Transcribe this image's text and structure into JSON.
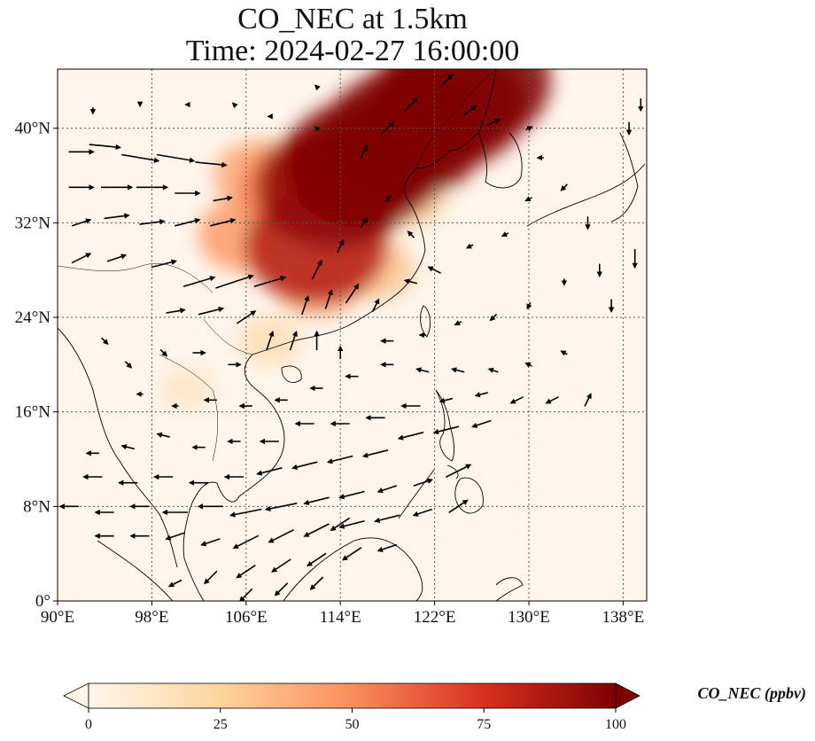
{
  "title": {
    "line1": "CO_NEC at 1.5km",
    "line2": "Time: 2024-02-27 16:00:00"
  },
  "map": {
    "lon_range": [
      90,
      140
    ],
    "lat_range": [
      0,
      45
    ],
    "lon_ticks": [
      {
        "value": 90,
        "label": "90°E"
      },
      {
        "value": 98,
        "label": "98°E"
      },
      {
        "value": 106,
        "label": "106°E"
      },
      {
        "value": 114,
        "label": "114°E"
      },
      {
        "value": 122,
        "label": "122°E"
      },
      {
        "value": 130,
        "label": "130°E"
      },
      {
        "value": 138,
        "label": "138°E"
      }
    ],
    "lat_ticks": [
      {
        "value": 0,
        "label": "0°"
      },
      {
        "value": 8,
        "label": "8°N"
      },
      {
        "value": 16,
        "label": "16°N"
      },
      {
        "value": 24,
        "label": "24°N"
      },
      {
        "value": 32,
        "label": "32°N"
      },
      {
        "value": 40,
        "label": "40°N"
      }
    ],
    "gridlines": "dotted",
    "background_color": "#fff5eb"
  },
  "colorbar": {
    "label": "CO_NEC (ppbv)",
    "range": [
      0,
      100
    ],
    "ticks": [
      {
        "value": 0,
        "label": "0"
      },
      {
        "value": 25,
        "label": "25"
      },
      {
        "value": 50,
        "label": "50"
      },
      {
        "value": 75,
        "label": "75"
      },
      {
        "value": 100,
        "label": "100"
      }
    ],
    "colormap": "OrRd",
    "colors": [
      "#fff5eb",
      "#fdd49e",
      "#fc8d59",
      "#d7301f",
      "#7f0000"
    ],
    "extend": "both"
  },
  "plumes": [
    {
      "lon": 119.5,
      "lat": 39.5,
      "value": 100
    },
    {
      "lon": 116,
      "lat": 37,
      "value": 100
    },
    {
      "lon": 113.5,
      "lat": 35,
      "value": 95
    },
    {
      "lon": 123,
      "lat": 42,
      "value": 100
    },
    {
      "lon": 125,
      "lat": 44,
      "value": 100
    },
    {
      "lon": 112,
      "lat": 30,
      "value": 85
    },
    {
      "lon": 110,
      "lat": 35,
      "value": 55
    },
    {
      "lon": 106,
      "lat": 31,
      "value": 45
    },
    {
      "lon": 107,
      "lat": 36,
      "value": 40
    },
    {
      "lon": 112,
      "lat": 27,
      "value": 40
    },
    {
      "lon": 117,
      "lat": 28,
      "value": 30
    },
    {
      "lon": 120,
      "lat": 34,
      "value": 25
    },
    {
      "lon": 108,
      "lat": 22,
      "value": 18
    },
    {
      "lon": 101,
      "lat": 18,
      "value": 12
    }
  ],
  "wind_vectors": [
    {
      "lon": 92,
      "lat": 38,
      "u": 4,
      "v": 0
    },
    {
      "lon": 94,
      "lat": 38.5,
      "u": 5,
      "v": -0.5
    },
    {
      "lon": 97,
      "lat": 37.5,
      "u": 6,
      "v": -1
    },
    {
      "lon": 100,
      "lat": 37.5,
      "u": 6,
      "v": -1
    },
    {
      "lon": 103,
      "lat": 37,
      "u": 5,
      "v": -0.5
    },
    {
      "lon": 92,
      "lat": 35,
      "u": 4,
      "v": 0
    },
    {
      "lon": 95,
      "lat": 35,
      "u": 5,
      "v": 0
    },
    {
      "lon": 98,
      "lat": 35,
      "u": 5,
      "v": 0
    },
    {
      "lon": 101,
      "lat": 34.5,
      "u": 4,
      "v": 0
    },
    {
      "lon": 104,
      "lat": 34,
      "u": 3,
      "v": 0.5
    },
    {
      "lon": 92,
      "lat": 32,
      "u": 3,
      "v": 1
    },
    {
      "lon": 95,
      "lat": 32.5,
      "u": 4,
      "v": 0.5
    },
    {
      "lon": 98,
      "lat": 32,
      "u": 4,
      "v": 0.5
    },
    {
      "lon": 101,
      "lat": 32,
      "u": 4,
      "v": 1
    },
    {
      "lon": 104,
      "lat": 32,
      "u": 4,
      "v": 1
    },
    {
      "lon": 92,
      "lat": 29,
      "u": 3,
      "v": 1.5
    },
    {
      "lon": 95,
      "lat": 29,
      "u": 3,
      "v": 1
    },
    {
      "lon": 99,
      "lat": 28.5,
      "u": 4,
      "v": 1
    },
    {
      "lon": 102,
      "lat": 27,
      "u": 5,
      "v": 1.5
    },
    {
      "lon": 105,
      "lat": 27,
      "u": 6,
      "v": 2
    },
    {
      "lon": 108,
      "lat": 27,
      "u": 5,
      "v": 1.5
    },
    {
      "lon": 100,
      "lat": 24.5,
      "u": 3,
      "v": 0.5
    },
    {
      "lon": 103,
      "lat": 24.5,
      "u": 4,
      "v": 1
    },
    {
      "lon": 106,
      "lat": 24,
      "u": 3,
      "v": 2
    },
    {
      "lon": 108,
      "lat": 22,
      "u": 1,
      "v": 3
    },
    {
      "lon": 110,
      "lat": 22,
      "u": 1,
      "v": 3
    },
    {
      "lon": 112,
      "lat": 22,
      "u": 0,
      "v": 3
    },
    {
      "lon": 114,
      "lat": 21,
      "u": 0,
      "v": 2
    },
    {
      "lon": 111,
      "lat": 25,
      "u": 1,
      "v": 3
    },
    {
      "lon": 113,
      "lat": 25.5,
      "u": 1,
      "v": 3
    },
    {
      "lon": 115,
      "lat": 26,
      "u": 2,
      "v": 3
    },
    {
      "lon": 117,
      "lat": 25,
      "u": 1,
      "v": 2
    },
    {
      "lon": 112,
      "lat": 28,
      "u": 1.5,
      "v": 3
    },
    {
      "lon": 114,
      "lat": 30,
      "u": 1,
      "v": 2
    },
    {
      "lon": 116,
      "lat": 32,
      "u": 1,
      "v": 1.5
    },
    {
      "lon": 118,
      "lat": 34,
      "u": 1,
      "v": 1
    },
    {
      "lon": 120,
      "lat": 31,
      "u": -1,
      "v": 1
    },
    {
      "lon": 122,
      "lat": 28,
      "u": -2,
      "v": 1
    },
    {
      "lon": 120,
      "lat": 27,
      "u": -2,
      "v": 0.5
    },
    {
      "lon": 116,
      "lat": 38,
      "u": 1,
      "v": 2
    },
    {
      "lon": 118,
      "lat": 40,
      "u": 2,
      "v": 2
    },
    {
      "lon": 120,
      "lat": 42,
      "u": 2,
      "v": 2
    },
    {
      "lon": 123,
      "lat": 44,
      "u": 2,
      "v": 2
    },
    {
      "lon": 125,
      "lat": 41.5,
      "u": 2,
      "v": 1.5
    },
    {
      "lon": 127,
      "lat": 40.5,
      "u": 2,
      "v": 1
    },
    {
      "lon": 130,
      "lat": 40,
      "u": 1,
      "v": 0.5
    },
    {
      "lon": 131,
      "lat": 37.5,
      "u": -1,
      "v": 0
    },
    {
      "lon": 133,
      "lat": 35,
      "u": -1,
      "v": -1
    },
    {
      "lon": 130,
      "lat": 34,
      "u": -1,
      "v": -0.5
    },
    {
      "lon": 128,
      "lat": 31,
      "u": -1,
      "v": -0.5
    },
    {
      "lon": 125,
      "lat": 30,
      "u": -1,
      "v": -0.5
    },
    {
      "lon": 135,
      "lat": 32,
      "u": 0,
      "v": -2
    },
    {
      "lon": 136,
      "lat": 28,
      "u": 0,
      "v": -2
    },
    {
      "lon": 137,
      "lat": 25,
      "u": 0,
      "v": -2
    },
    {
      "lon": 139,
      "lat": 29,
      "u": 0,
      "v": -3
    },
    {
      "lon": 138.5,
      "lat": 40,
      "u": 0,
      "v": -2
    },
    {
      "lon": 139.5,
      "lat": 42,
      "u": 0,
      "v": -2
    },
    {
      "lon": 133,
      "lat": 27,
      "u": 0,
      "v": -1
    },
    {
      "lon": 130,
      "lat": 25,
      "u": -0.5,
      "v": -1
    },
    {
      "lon": 127,
      "lat": 24,
      "u": -1,
      "v": -1
    },
    {
      "lon": 124,
      "lat": 23.5,
      "u": -1,
      "v": -0.5
    },
    {
      "lon": 121,
      "lat": 22.5,
      "u": -1,
      "v": 0
    },
    {
      "lon": 118,
      "lat": 22,
      "u": -2,
      "v": 0
    },
    {
      "lon": 115,
      "lat": 19,
      "u": -2,
      "v": 0
    },
    {
      "lon": 118,
      "lat": 20,
      "u": -2,
      "v": 0
    },
    {
      "lon": 121,
      "lat": 19.5,
      "u": -2,
      "v": 0.5
    },
    {
      "lon": 124,
      "lat": 19.5,
      "u": -2,
      "v": 0.5
    },
    {
      "lon": 127,
      "lat": 19.5,
      "u": -1.5,
      "v": 0.5
    },
    {
      "lon": 130,
      "lat": 20,
      "u": -1,
      "v": 0.5
    },
    {
      "lon": 133,
      "lat": 21,
      "u": -1,
      "v": 0.5
    },
    {
      "lon": 126,
      "lat": 17.5,
      "u": -2,
      "v": -0.5
    },
    {
      "lon": 129,
      "lat": 17,
      "u": -2,
      "v": -1
    },
    {
      "lon": 132,
      "lat": 17,
      "u": -2,
      "v": -1
    },
    {
      "lon": 135,
      "lat": 17,
      "u": 1,
      "v": 2
    },
    {
      "lon": 123,
      "lat": 17,
      "u": -2,
      "v": -0.5
    },
    {
      "lon": 120,
      "lat": 16.5,
      "u": -3,
      "v": 0
    },
    {
      "lon": 117,
      "lat": 15.5,
      "u": -3,
      "v": 0
    },
    {
      "lon": 114,
      "lat": 15,
      "u": -3,
      "v": 0
    },
    {
      "lon": 111,
      "lat": 15,
      "u": -3,
      "v": 0
    },
    {
      "lon": 108,
      "lat": 13.5,
      "u": -3,
      "v": 0
    },
    {
      "lon": 105,
      "lat": 13.5,
      "u": -2,
      "v": 0
    },
    {
      "lon": 102,
      "lat": 13,
      "u": -2,
      "v": 0
    },
    {
      "lon": 99,
      "lat": 14,
      "u": -2,
      "v": 0.5
    },
    {
      "lon": 96,
      "lat": 13,
      "u": -2,
      "v": 0.5
    },
    {
      "lon": 93,
      "lat": 12.5,
      "u": -2,
      "v": 0
    },
    {
      "lon": 120,
      "lat": 14,
      "u": -4,
      "v": -1
    },
    {
      "lon": 123,
      "lat": 14.5,
      "u": -4,
      "v": -1
    },
    {
      "lon": 126,
      "lat": 15,
      "u": -3,
      "v": -1
    },
    {
      "lon": 117,
      "lat": 12.5,
      "u": -4,
      "v": -1
    },
    {
      "lon": 114,
      "lat": 12,
      "u": -4,
      "v": -1
    },
    {
      "lon": 111,
      "lat": 11.5,
      "u": -4,
      "v": -1
    },
    {
      "lon": 108,
      "lat": 11,
      "u": -4,
      "v": -1
    },
    {
      "lon": 105,
      "lat": 10.5,
      "u": -3,
      "v": 0
    },
    {
      "lon": 102,
      "lat": 10,
      "u": -3,
      "v": 0
    },
    {
      "lon": 99,
      "lat": 10.5,
      "u": -3,
      "v": 0
    },
    {
      "lon": 96,
      "lat": 10,
      "u": -3,
      "v": 0
    },
    {
      "lon": 93,
      "lat": 10.5,
      "u": -3,
      "v": 0
    },
    {
      "lon": 124,
      "lat": 11,
      "u": 4,
      "v": 2
    },
    {
      "lon": 121,
      "lat": 10,
      "u": 3,
      "v": 1
    },
    {
      "lon": 118,
      "lat": 9.5,
      "u": -3,
      "v": -1
    },
    {
      "lon": 115,
      "lat": 9,
      "u": -4,
      "v": -1
    },
    {
      "lon": 112,
      "lat": 8.5,
      "u": -4,
      "v": -1
    },
    {
      "lon": 109,
      "lat": 8,
      "u": -5,
      "v": -1
    },
    {
      "lon": 106,
      "lat": 7.5,
      "u": -5,
      "v": -1
    },
    {
      "lon": 103,
      "lat": 8,
      "u": -4,
      "v": 0
    },
    {
      "lon": 100,
      "lat": 7.5,
      "u": -4,
      "v": 0
    },
    {
      "lon": 97,
      "lat": 8,
      "u": -3,
      "v": 0
    },
    {
      "lon": 94,
      "lat": 7.5,
      "u": -3,
      "v": 0
    },
    {
      "lon": 91,
      "lat": 8,
      "u": -3,
      "v": 0
    },
    {
      "lon": 124,
      "lat": 8,
      "u": 3,
      "v": 2
    },
    {
      "lon": 121,
      "lat": 7.5,
      "u": -3,
      "v": -1
    },
    {
      "lon": 118,
      "lat": 7,
      "u": -4,
      "v": -1
    },
    {
      "lon": 115,
      "lat": 6.5,
      "u": -4,
      "v": -1
    },
    {
      "lon": 112,
      "lat": 6,
      "u": -4,
      "v": -2
    },
    {
      "lon": 109,
      "lat": 5.5,
      "u": -4,
      "v": -2
    },
    {
      "lon": 106,
      "lat": 5,
      "u": -4,
      "v": -2
    },
    {
      "lon": 103,
      "lat": 5,
      "u": -3,
      "v": -1
    },
    {
      "lon": 100,
      "lat": 5.5,
      "u": -3,
      "v": -1
    },
    {
      "lon": 97,
      "lat": 5.5,
      "u": -3,
      "v": 0
    },
    {
      "lon": 94,
      "lat": 5.5,
      "u": -3,
      "v": 0
    },
    {
      "lon": 118,
      "lat": 4.5,
      "u": -3,
      "v": -1
    },
    {
      "lon": 115,
      "lat": 4,
      "u": -3,
      "v": -2
    },
    {
      "lon": 112,
      "lat": 3.5,
      "u": -3,
      "v": -2
    },
    {
      "lon": 109,
      "lat": 3,
      "u": -3,
      "v": -2
    },
    {
      "lon": 106,
      "lat": 2.5,
      "u": -3,
      "v": -2
    },
    {
      "lon": 103,
      "lat": 2,
      "u": -2,
      "v": -2
    },
    {
      "lon": 100,
      "lat": 1.5,
      "u": -2,
      "v": -1
    },
    {
      "lon": 106,
      "lat": 0.5,
      "u": -2,
      "v": -2
    },
    {
      "lon": 109,
      "lat": 1,
      "u": -2,
      "v": -2
    },
    {
      "lon": 112,
      "lat": 1.5,
      "u": -2,
      "v": -2
    },
    {
      "lon": 114,
      "lat": 6.5,
      "u": -3,
      "v": -2
    },
    {
      "lon": 94,
      "lat": 22,
      "u": 1,
      "v": -1
    },
    {
      "lon": 96,
      "lat": 20,
      "u": 1,
      "v": -1
    },
    {
      "lon": 99,
      "lat": 21,
      "u": 1,
      "v": -1
    },
    {
      "lon": 102,
      "lat": 21,
      "u": 2,
      "v": 0
    },
    {
      "lon": 105,
      "lat": 20,
      "u": 2,
      "v": 0
    },
    {
      "lon": 97,
      "lat": 17.5,
      "u": -1,
      "v": 0
    },
    {
      "lon": 100,
      "lat": 16.5,
      "u": -1,
      "v": 0
    },
    {
      "lon": 103,
      "lat": 17,
      "u": -2,
      "v": 0
    },
    {
      "lon": 106,
      "lat": 16.5,
      "u": -2,
      "v": 0
    },
    {
      "lon": 109,
      "lat": 17,
      "u": -2,
      "v": 0
    },
    {
      "lon": 112,
      "lat": 18,
      "u": -2,
      "v": 0
    },
    {
      "lon": 112,
      "lat": 40,
      "u": -0.5,
      "v": 0.5
    },
    {
      "lon": 108,
      "lat": 41,
      "u": -0.5,
      "v": 0
    },
    {
      "lon": 105,
      "lat": 42,
      "u": -0.5,
      "v": 0.5
    },
    {
      "lon": 101,
      "lat": 42,
      "u": -0.5,
      "v": 0
    },
    {
      "lon": 97,
      "lat": 42,
      "u": 0,
      "v": -0.5
    },
    {
      "lon": 93,
      "lat": 41.5,
      "u": 0,
      "v": -1
    },
    {
      "lon": 112,
      "lat": 43.5,
      "u": -0.5,
      "v": 0.5
    }
  ]
}
